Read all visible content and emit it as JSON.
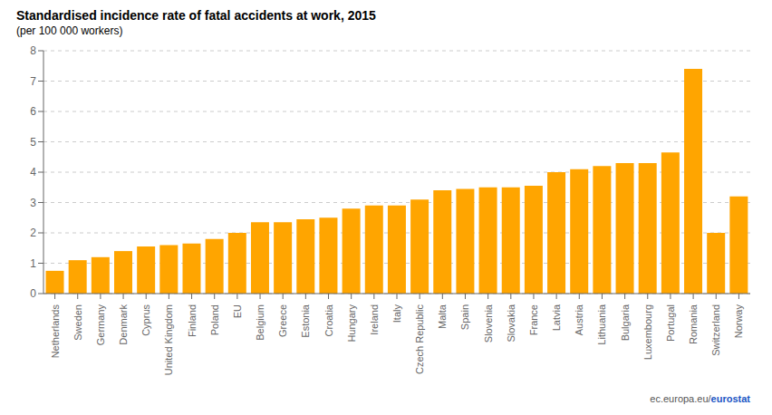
{
  "chart_data": {
    "type": "bar",
    "title": "Standardised incidence rate of fatal accidents at work, 2015",
    "subtitle": "(per 100 000 workers)",
    "categories": [
      "Netherlands",
      "Sweden",
      "Germany",
      "Denmark",
      "Cyprus",
      "United Kingdom",
      "Finland",
      "Poland",
      "EU",
      "Belgium",
      "Greece",
      "Estonia",
      "Croatia",
      "Hungary",
      "Ireland",
      "Italy",
      "Czech Republic",
      "Malta",
      "Spain",
      "Slovenia",
      "Slovakia",
      "France",
      "Latvia",
      "Austria",
      "Lithuania",
      "Bulgaria",
      "Luxembourg",
      "Portugal",
      "Romania",
      "Switzerland",
      "Norway"
    ],
    "values": [
      0.75,
      1.1,
      1.2,
      1.4,
      1.55,
      1.6,
      1.65,
      1.8,
      2.0,
      2.35,
      2.35,
      2.45,
      2.5,
      2.8,
      2.9,
      2.9,
      3.1,
      3.4,
      3.45,
      3.5,
      3.5,
      3.55,
      4.0,
      4.1,
      4.2,
      4.3,
      4.3,
      4.65,
      7.4,
      2.0,
      3.2
    ],
    "color": "#FFA500",
    "ylim": [
      0,
      8
    ],
    "yticks": [
      0,
      1,
      2,
      3,
      4,
      5,
      6,
      7,
      8
    ],
    "grid": true,
    "annotations": [
      "ec.europa.eu/",
      "eurostat"
    ]
  }
}
